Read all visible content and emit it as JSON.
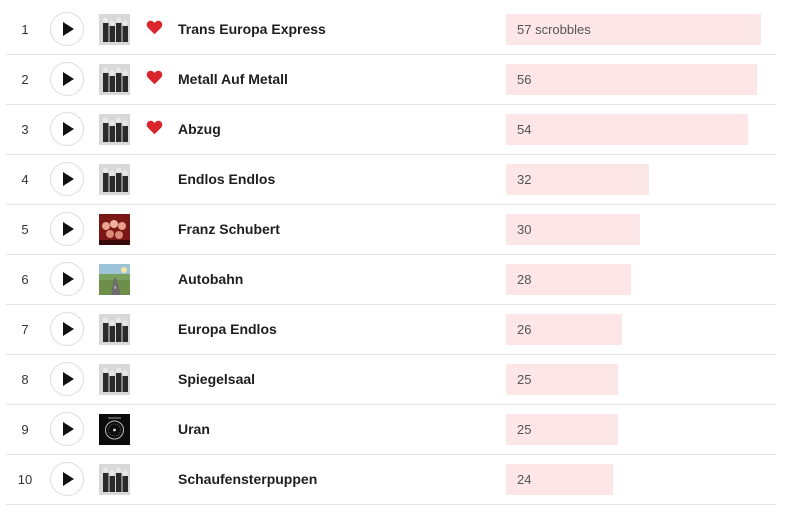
{
  "icons": {
    "play": "play-icon",
    "love": "heart-icon",
    "love_color": "#d9252b"
  },
  "scrobbles_suffix": " scrobbles",
  "max_count": 57,
  "tracks": [
    {
      "rank": "1",
      "title": "Trans Europa Express",
      "scrobbles": 57,
      "count_label": "57 scrobbles",
      "loved": true,
      "art": "band-photo-bw"
    },
    {
      "rank": "2",
      "title": "Metall Auf Metall",
      "scrobbles": 56,
      "count_label": "56",
      "loved": true,
      "art": "band-photo-bw"
    },
    {
      "rank": "3",
      "title": "Abzug",
      "scrobbles": 54,
      "count_label": "54",
      "loved": true,
      "art": "band-photo-bw"
    },
    {
      "rank": "4",
      "title": "Endlos Endlos",
      "scrobbles": 32,
      "count_label": "32",
      "loved": false,
      "art": "band-photo-bw"
    },
    {
      "rank": "5",
      "title": "Franz Schubert",
      "scrobbles": 30,
      "count_label": "30",
      "loved": false,
      "art": "band-photo-red"
    },
    {
      "rank": "6",
      "title": "Autobahn",
      "scrobbles": 28,
      "count_label": "28",
      "loved": false,
      "art": "highway-painting"
    },
    {
      "rank": "7",
      "title": "Europa Endlos",
      "scrobbles": 26,
      "count_label": "26",
      "loved": false,
      "art": "band-photo-bw"
    },
    {
      "rank": "8",
      "title": "Spiegelsaal",
      "scrobbles": 25,
      "count_label": "25",
      "loved": false,
      "art": "band-photo-bw"
    },
    {
      "rank": "9",
      "title": "Uran",
      "scrobbles": 25,
      "count_label": "25",
      "loved": false,
      "art": "radioactivity-dial"
    },
    {
      "rank": "10",
      "title": "Schaufensterpuppen",
      "scrobbles": 24,
      "count_label": "24",
      "loved": false,
      "art": "band-photo-bw"
    }
  ]
}
